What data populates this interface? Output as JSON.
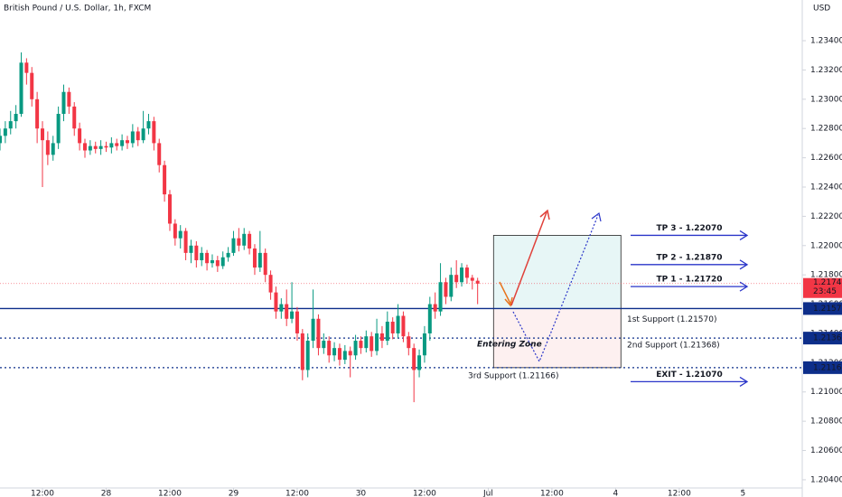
{
  "chart_data": {
    "type": "candlestick",
    "title": "British Pound / U.S. Dollar, 1h, FXCM",
    "y_unit": "USD",
    "up_color": "#089981",
    "down_color": "#f23645",
    "x": [
      0,
      1,
      2,
      3,
      4,
      5,
      6,
      7,
      8,
      9,
      10,
      11,
      12,
      13,
      14,
      15,
      16,
      17,
      18,
      19,
      20,
      21,
      22,
      23,
      24,
      25,
      26,
      27,
      28,
      29,
      30,
      31,
      32,
      33,
      34,
      35,
      36,
      37,
      38,
      39,
      40,
      41,
      42,
      43,
      44,
      45,
      46,
      47,
      48,
      49,
      50,
      51,
      52,
      53,
      54,
      55,
      56,
      57,
      58,
      59,
      60,
      61,
      62,
      63,
      64,
      65,
      66,
      67,
      68,
      69,
      70,
      71,
      72,
      73,
      74,
      75,
      76,
      77,
      78,
      79,
      80,
      81,
      82,
      83,
      84,
      85,
      86,
      87,
      88,
      89,
      90
    ],
    "open": [
      1.227,
      1.2275,
      1.228,
      1.2285,
      1.229,
      1.2325,
      1.2318,
      1.23,
      1.228,
      1.2272,
      1.2262,
      1.227,
      1.229,
      1.2305,
      1.2295,
      1.228,
      1.227,
      1.2265,
      1.2268,
      1.2266,
      1.2268,
      1.2267,
      1.227,
      1.2268,
      1.2272,
      1.227,
      1.2278,
      1.2272,
      1.228,
      1.2285,
      1.227,
      1.2255,
      1.2235,
      1.2215,
      1.2205,
      1.221,
      1.2195,
      1.22,
      1.219,
      1.2195,
      1.2188,
      1.219,
      1.2186,
      1.2192,
      1.2195,
      1.2205,
      1.22,
      1.2208,
      1.2198,
      1.2185,
      1.2195,
      1.218,
      1.2168,
      1.2155,
      1.216,
      1.215,
      1.2155,
      1.214,
      1.2115,
      1.2135,
      1.215,
      1.213,
      1.2135,
      1.2125,
      1.213,
      1.2122,
      1.2128,
      1.2125,
      1.2135,
      1.213,
      1.2138,
      1.2128,
      1.214,
      1.2135,
      1.2148,
      1.214,
      1.2152,
      1.2138,
      1.213,
      1.2115,
      1.2125,
      1.214,
      1.216,
      1.2155,
      1.2175,
      1.2165,
      1.218,
      1.2175,
      1.2185,
      1.2178,
      1.2176
    ],
    "high": [
      1.228,
      1.2285,
      1.2292,
      1.2296,
      1.2332,
      1.2328,
      1.2322,
      1.2305,
      1.2285,
      1.2278,
      1.2275,
      1.2295,
      1.231,
      1.2308,
      1.2298,
      1.2284,
      1.2273,
      1.2272,
      1.2271,
      1.2272,
      1.2271,
      1.2274,
      1.2273,
      1.2276,
      1.2275,
      1.2283,
      1.2281,
      1.2292,
      1.229,
      1.2288,
      1.2273,
      1.2258,
      1.2238,
      1.2218,
      1.2214,
      1.2212,
      1.2204,
      1.2203,
      1.2199,
      1.2197,
      1.2194,
      1.2193,
      1.2196,
      1.2199,
      1.221,
      1.2212,
      1.2212,
      1.221,
      1.2201,
      1.221,
      1.2198,
      1.2183,
      1.2172,
      1.2164,
      1.217,
      1.2175,
      1.2158,
      1.2143,
      1.214,
      1.217,
      1.2153,
      1.214,
      1.2138,
      1.2134,
      1.2133,
      1.2132,
      1.2131,
      1.2139,
      1.2138,
      1.2142,
      1.2141,
      1.215,
      1.2145,
      1.2155,
      1.2151,
      1.216,
      1.2155,
      1.2141,
      1.2133,
      1.2129,
      1.2145,
      1.2165,
      1.2168,
      1.2188,
      1.2178,
      1.2185,
      1.219,
      1.2188,
      1.2187,
      1.218,
      1.2178
    ],
    "low": [
      1.2265,
      1.227,
      1.2276,
      1.228,
      1.2288,
      1.231,
      1.2295,
      1.227,
      1.224,
      1.2255,
      1.2258,
      1.2266,
      1.2285,
      1.229,
      1.2275,
      1.2265,
      1.226,
      1.2262,
      1.2263,
      1.2262,
      1.2264,
      1.2263,
      1.2265,
      1.2265,
      1.2266,
      1.2267,
      1.2268,
      1.227,
      1.2276,
      1.2265,
      1.225,
      1.223,
      1.221,
      1.22,
      1.2198,
      1.219,
      1.2188,
      1.2185,
      1.2186,
      1.2183,
      1.2185,
      1.2182,
      1.2184,
      1.2189,
      1.2193,
      1.2196,
      1.2197,
      1.2194,
      1.218,
      1.2182,
      1.2175,
      1.2163,
      1.215,
      1.215,
      1.2145,
      1.2147,
      1.2135,
      1.2108,
      1.211,
      1.213,
      1.2125,
      1.2126,
      1.212,
      1.2121,
      1.2118,
      1.2119,
      1.211,
      1.2122,
      1.2126,
      1.2127,
      1.2124,
      1.2125,
      1.213,
      1.2132,
      1.2136,
      1.2137,
      1.2134,
      1.2125,
      1.2093,
      1.211,
      1.212,
      1.2135,
      1.215,
      1.2152,
      1.216,
      1.2162,
      1.2171,
      1.2172,
      1.2174,
      1.217,
      1.216
    ],
    "close": [
      1.2275,
      1.228,
      1.2285,
      1.229,
      1.2325,
      1.2318,
      1.23,
      1.228,
      1.2272,
      1.2262,
      1.227,
      1.229,
      1.2305,
      1.2295,
      1.228,
      1.227,
      1.2265,
      1.2268,
      1.2266,
      1.2268,
      1.2267,
      1.227,
      1.2268,
      1.2272,
      1.227,
      1.2278,
      1.2272,
      1.228,
      1.2285,
      1.227,
      1.2255,
      1.2235,
      1.2215,
      1.2205,
      1.221,
      1.2195,
      1.22,
      1.219,
      1.2195,
      1.2188,
      1.219,
      1.2186,
      1.2192,
      1.2195,
      1.2205,
      1.22,
      1.2208,
      1.2198,
      1.2185,
      1.2195,
      1.218,
      1.2168,
      1.2155,
      1.216,
      1.215,
      1.2155,
      1.214,
      1.2115,
      1.2135,
      1.215,
      1.213,
      1.2135,
      1.2125,
      1.213,
      1.2122,
      1.2128,
      1.2125,
      1.2135,
      1.213,
      1.2138,
      1.2128,
      1.214,
      1.2135,
      1.2148,
      1.214,
      1.2152,
      1.2138,
      1.213,
      1.2115,
      1.2125,
      1.214,
      1.216,
      1.2155,
      1.2175,
      1.2165,
      1.218,
      1.2175,
      1.2185,
      1.2178,
      1.2176,
      1.2174
    ],
    "xlim": [
      0,
      151
    ],
    "xticks": [
      {
        "value": 8,
        "label": "12:00"
      },
      {
        "value": 20,
        "label": "28"
      },
      {
        "value": 32,
        "label": "12:00"
      },
      {
        "value": 44,
        "label": "29"
      },
      {
        "value": 56,
        "label": "12:00"
      },
      {
        "value": 68,
        "label": "30"
      },
      {
        "value": 80,
        "label": "12:00"
      },
      {
        "value": 92,
        "label": "Jul"
      },
      {
        "value": 104,
        "label": "12:00"
      },
      {
        "value": 116,
        "label": "4"
      },
      {
        "value": 128,
        "label": "12:00"
      },
      {
        "value": 140,
        "label": "5"
      }
    ],
    "ylim": [
      1.20344,
      1.23678
    ],
    "yticks": [
      {
        "value": 1.234,
        "label": "1.23400"
      },
      {
        "value": 1.232,
        "label": "1.23200"
      },
      {
        "value": 1.23,
        "label": "1.23000"
      },
      {
        "value": 1.228,
        "label": "1.22800"
      },
      {
        "value": 1.226,
        "label": "1.22600"
      },
      {
        "value": 1.224,
        "label": "1.22400"
      },
      {
        "value": 1.222,
        "label": "1.22200"
      },
      {
        "value": 1.22,
        "label": "1.22000"
      },
      {
        "value": 1.218,
        "label": "1.21800"
      },
      {
        "value": 1.216,
        "label": "1.21600"
      },
      {
        "value": 1.214,
        "label": "1.21400"
      },
      {
        "value": 1.212,
        "label": "1.21200"
      },
      {
        "value": 1.21,
        "label": "1.21000"
      },
      {
        "value": 1.208,
        "label": "1.20800"
      },
      {
        "value": 1.206,
        "label": "1.20600"
      },
      {
        "value": 1.204,
        "label": "1.20400"
      }
    ],
    "grid": false,
    "current_price": {
      "value": 1.21741,
      "label": "1.21741",
      "countdown": "23:45",
      "color": "#f23645"
    },
    "supports": [
      {
        "value": 1.2157,
        "axis_label": "1.21570",
        "label": "1st Support (1.21570)",
        "line": "solid"
      },
      {
        "value": 1.21368,
        "axis_label": "1.21368",
        "label": "2nd Support (1.21368)",
        "line": "dotted"
      },
      {
        "value": 1.21166,
        "axis_label": "1.21166",
        "label": "3rd Support (1.21166)",
        "line": "dotted"
      }
    ],
    "support_color": "#0d2e8a",
    "targets": [
      {
        "value": 1.2207,
        "label": "TP 3 - 1.22070",
        "color": "#089981"
      },
      {
        "value": 1.2187,
        "label": "TP 2 - 1.21870",
        "color": "#089981"
      },
      {
        "value": 1.2172,
        "label": "TP 1 - 1.21720",
        "color": "#089981"
      },
      {
        "value": 1.2107,
        "label": "EXIT - 1.21070",
        "color": "#f23645"
      }
    ],
    "zone_label": "Entering Zone"
  }
}
